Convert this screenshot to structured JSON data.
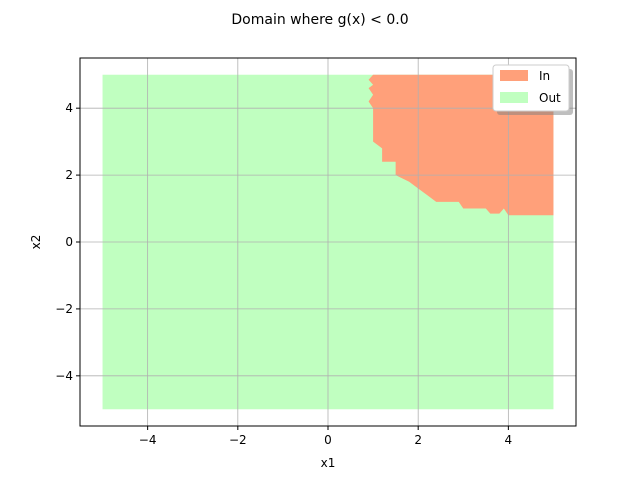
{
  "chart_data": {
    "type": "area",
    "title": "Domain where g(x) < 0.0",
    "xlabel": "x1",
    "ylabel": "x2",
    "xlim": [
      -5.5,
      5.5
    ],
    "ylim": [
      -5.5,
      5.5
    ],
    "xticks": [
      -4,
      -2,
      0,
      2,
      4
    ],
    "yticks": [
      -4,
      -2,
      0,
      2,
      4
    ],
    "xtick_labels": [
      "−4",
      "−2",
      "0",
      "2",
      "4"
    ],
    "ytick_labels": [
      "−4",
      "−2",
      "0",
      "2",
      "4"
    ],
    "grid": true,
    "legend_position": "top-right",
    "colors": {
      "in": "#ffa07a",
      "out": "#c0ffc0",
      "grid": "#b0b0b0"
    },
    "domain_box": {
      "x": [
        -5,
        5
      ],
      "y": [
        -5,
        5
      ]
    },
    "series": [
      {
        "name": "In",
        "color": "#ffa07a",
        "region": "in"
      },
      {
        "name": "Out",
        "color": "#c0ffc0",
        "region": "out"
      }
    ],
    "in_region_boundary": [
      [
        1.0,
        5.0
      ],
      [
        0.9,
        4.85
      ],
      [
        1.0,
        4.7
      ],
      [
        0.9,
        4.6
      ],
      [
        1.0,
        4.4
      ],
      [
        0.9,
        4.2
      ],
      [
        1.0,
        4.0
      ],
      [
        1.0,
        3.0
      ],
      [
        1.2,
        2.8
      ],
      [
        1.2,
        2.4
      ],
      [
        1.5,
        2.4
      ],
      [
        1.5,
        2.0
      ],
      [
        1.8,
        1.8
      ],
      [
        2.0,
        1.6
      ],
      [
        2.2,
        1.4
      ],
      [
        2.4,
        1.2
      ],
      [
        2.9,
        1.2
      ],
      [
        3.0,
        1.0
      ],
      [
        3.5,
        1.0
      ],
      [
        3.6,
        0.85
      ],
      [
        3.8,
        0.85
      ],
      [
        3.9,
        1.0
      ],
      [
        4.0,
        0.8
      ],
      [
        5.0,
        0.8
      ],
      [
        5.0,
        5.0
      ]
    ]
  }
}
